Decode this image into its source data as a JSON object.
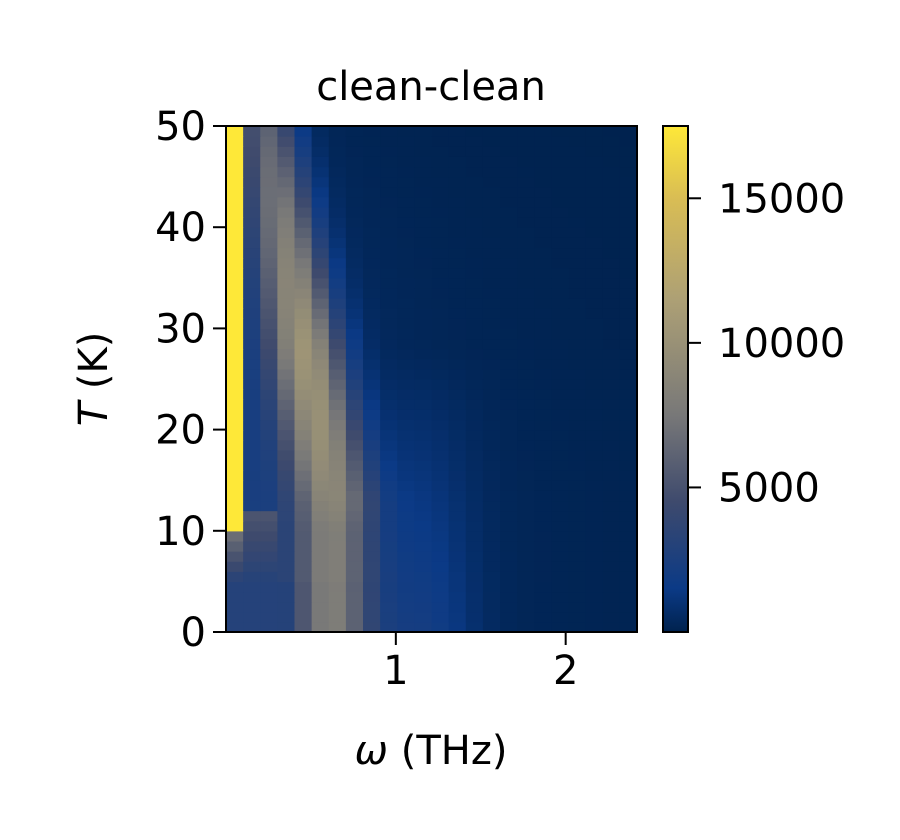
{
  "chart_data": {
    "type": "heatmap",
    "title": "clean-clean",
    "xlabel_sym": "ω",
    "xlabel_unit": " (THz)",
    "ylabel_sym": "T",
    "ylabel_unit": " (K)",
    "xlim": [
      0,
      2.42
    ],
    "ylim": [
      0,
      50
    ],
    "x_ticks": [
      1,
      2
    ],
    "x_tick_labels": [
      "1",
      "2"
    ],
    "y_ticks": [
      0,
      10,
      20,
      30,
      40,
      50
    ],
    "y_tick_labels": [
      "0",
      "10",
      "20",
      "30",
      "40",
      "50"
    ],
    "colorbar": {
      "min": 0,
      "max": 17500,
      "ticks": [
        5000,
        10000,
        15000
      ],
      "tick_labels": [
        "5000",
        "10000",
        "15000"
      ],
      "colormap": "cividis-like",
      "stops": [
        {
          "v": 0,
          "color": "#00224e"
        },
        {
          "v": 1500,
          "color": "#0b3a86"
        },
        {
          "v": 4500,
          "color": "#3e4a6d"
        },
        {
          "v": 7500,
          "color": "#787878"
        },
        {
          "v": 11500,
          "color": "#ada075"
        },
        {
          "v": 15000,
          "color": "#d9bd54"
        },
        {
          "v": 17500,
          "color": "#fee838"
        }
      ]
    },
    "x_bins": 24,
    "y_bins": 50,
    "grid": false,
    "description_of_values": "Intensity vs frequency ω and temperature T; saturated ridge near ω≈0 for T>10 K; broad feature around ω≈0.5–0.9 THz at low T shifting toward low ω as T increases; low background elsewhere."
  }
}
